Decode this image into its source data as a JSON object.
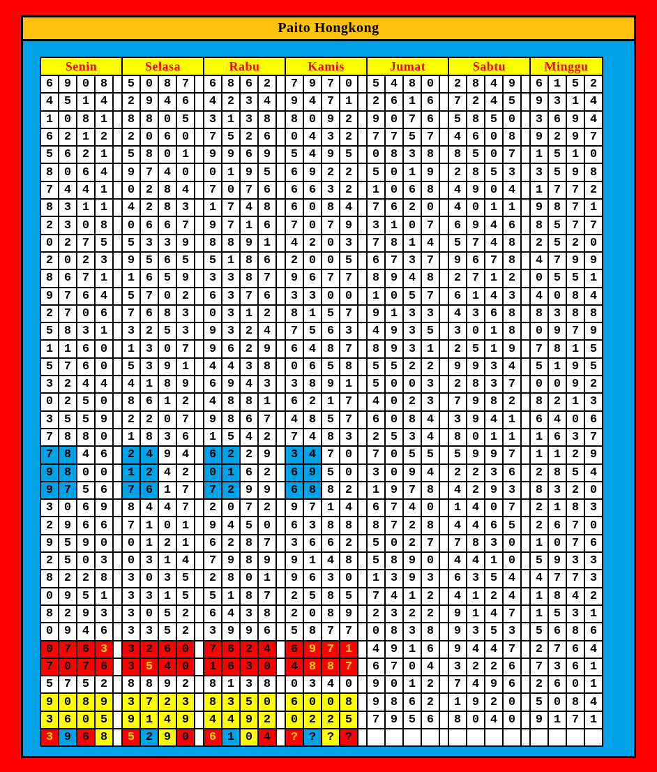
{
  "title": "Paito Hongkong",
  "days": [
    "Senin",
    "Selasa",
    "Rabu",
    "Kamis",
    "Jumat",
    "Sabtu",
    "Minggu"
  ],
  "colors": {
    "page_border": "#FF0000",
    "background": "#00A2E8",
    "title_bar": "#FFC20E",
    "header_bg": "#FFFF00",
    "header_text": "#FF0000",
    "cell_bg": "#FFFFFF",
    "digit_black": "#000000",
    "digit_yellow": "#FFD800",
    "highlight_blue": "#00A2E8",
    "highlight_red": "#FF0000",
    "highlight_yellow": "#FFFF00"
  },
  "style_legend": {
    "bg_codes": {
      "w": "white",
      "b": "blue",
      "r": "red",
      "y": "yellow"
    },
    "fg_codes": {
      "k": "black",
      "y": "yellow"
    }
  },
  "rows": [
    {
      "d": [
        "6908",
        "5087",
        "6862",
        "7970",
        "5480",
        "2849",
        "6152"
      ]
    },
    {
      "d": [
        "4514",
        "2946",
        "4234",
        "9471",
        "2616",
        "7245",
        "9314"
      ]
    },
    {
      "d": [
        "1081",
        "8805",
        "3138",
        "8092",
        "9076",
        "5850",
        "3694"
      ]
    },
    {
      "d": [
        "6212",
        "2060",
        "7526",
        "0432",
        "7757",
        "4608",
        "9297"
      ]
    },
    {
      "d": [
        "5621",
        "5801",
        "9969",
        "5495",
        "0838",
        "8507",
        "1510"
      ]
    },
    {
      "d": [
        "8064",
        "9740",
        "0195",
        "6922",
        "5019",
        "2853",
        "3598"
      ]
    },
    {
      "d": [
        "7441",
        "0284",
        "7076",
        "6632",
        "1068",
        "4904",
        "1772"
      ]
    },
    {
      "d": [
        "8311",
        "4283",
        "1748",
        "6084",
        "7620",
        "4011",
        "9871"
      ]
    },
    {
      "d": [
        "2308",
        "0667",
        "9716",
        "7079",
        "3107",
        "6946",
        "8577"
      ]
    },
    {
      "d": [
        "0275",
        "5339",
        "8891",
        "4203",
        "7814",
        "5748",
        "2520"
      ]
    },
    {
      "d": [
        "2023",
        "9565",
        "5186",
        "2005",
        "6737",
        "9678",
        "4799"
      ]
    },
    {
      "d": [
        "8671",
        "1659",
        "3387",
        "9677",
        "8948",
        "2712",
        "0551"
      ]
    },
    {
      "d": [
        "9764",
        "5702",
        "6376",
        "3300",
        "1057",
        "6143",
        "4084"
      ]
    },
    {
      "d": [
        "2706",
        "7683",
        "0312",
        "8157",
        "9133",
        "4368",
        "8388"
      ]
    },
    {
      "d": [
        "5831",
        "3253",
        "9324",
        "7563",
        "4935",
        "3018",
        "0979"
      ]
    },
    {
      "d": [
        "1160",
        "1307",
        "9629",
        "6487",
        "8931",
        "2519",
        "7815"
      ]
    },
    {
      "d": [
        "5760",
        "5391",
        "4438",
        "0658",
        "5522",
        "9934",
        "5195"
      ]
    },
    {
      "d": [
        "3244",
        "4189",
        "6943",
        "3891",
        "5003",
        "2837",
        "0092"
      ]
    },
    {
      "d": [
        "0250",
        "8612",
        "4881",
        "6217",
        "4023",
        "7982",
        "8213"
      ]
    },
    {
      "d": [
        "3559",
        "2207",
        "9867",
        "4857",
        "6084",
        "3941",
        "6406"
      ]
    },
    {
      "d": [
        "7880",
        "1836",
        "1542",
        "7483",
        "2534",
        "8011",
        "1637"
      ]
    },
    {
      "d": [
        "7846",
        "2494",
        "6229",
        "3470",
        "7055",
        "5997",
        "1129"
      ],
      "bg": [
        "bbww",
        "bbww",
        "bbww",
        "bbww",
        "wwww",
        "wwww",
        "wwww"
      ]
    },
    {
      "d": [
        "9800",
        "1242",
        "0162",
        "6950",
        "3094",
        "2236",
        "2854"
      ],
      "bg": [
        "bbww",
        "bbww",
        "bbww",
        "bbww",
        "wwww",
        "wwww",
        "wwww"
      ]
    },
    {
      "d": [
        "9756",
        "7617",
        "7299",
        "6882",
        "1978",
        "4293",
        "8320"
      ],
      "bg": [
        "bbww",
        "bbww",
        "bbww",
        "bbww",
        "wwww",
        "wwww",
        "wwww"
      ]
    },
    {
      "d": [
        "3069",
        "8447",
        "2072",
        "9714",
        "6740",
        "1407",
        "2183"
      ]
    },
    {
      "d": [
        "2966",
        "7101",
        "9450",
        "6388",
        "8728",
        "4465",
        "2670"
      ]
    },
    {
      "d": [
        "9590",
        "0121",
        "6287",
        "3662",
        "5027",
        "7830",
        "1076"
      ]
    },
    {
      "d": [
        "2503",
        "0314",
        "7989",
        "9148",
        "5890",
        "4410",
        "5933"
      ]
    },
    {
      "d": [
        "8228",
        "3035",
        "2801",
        "9630",
        "1393",
        "6354",
        "4773"
      ]
    },
    {
      "d": [
        "0951",
        "3315",
        "5187",
        "2585",
        "7412",
        "4124",
        "1842"
      ]
    },
    {
      "d": [
        "8293",
        "3052",
        "6438",
        "2089",
        "2322",
        "9147",
        "1531"
      ]
    },
    {
      "d": [
        "0946",
        "3352",
        "3996",
        "5877",
        "0838",
        "9353",
        "5686"
      ]
    },
    {
      "d": [
        "0763",
        "3260",
        "7624",
        "6971",
        "4916",
        "9447",
        "2764"
      ],
      "bg": [
        "rrrr",
        "rrrr",
        "rrrr",
        "rrrr",
        "wwww",
        "wwww",
        "wwww"
      ],
      "fg": [
        "kkky",
        "kkkk",
        "kkkk",
        "kyyy",
        "kkkk",
        "kkkk",
        "kkkk"
      ]
    },
    {
      "d": [
        "7076",
        "3540",
        "1630",
        "4887",
        "6704",
        "3226",
        "7361"
      ],
      "bg": [
        "rrrr",
        "rrrr",
        "rrrr",
        "rrrr",
        "wwww",
        "wwww",
        "wwww"
      ],
      "fg": [
        "kkkk",
        "kykk",
        "kkkk",
        "kyyy",
        "kkkk",
        "kkkk",
        "kkkk"
      ]
    },
    {
      "d": [
        "5752",
        "8892",
        "8138",
        "0340",
        "9012",
        "7496",
        "2601"
      ]
    },
    {
      "d": [
        "9089",
        "3723",
        "8350",
        "6008",
        "9862",
        "1920",
        "5084"
      ],
      "bg": [
        "yyyy",
        "yyyy",
        "yyyy",
        "yyyy",
        "wwww",
        "wwww",
        "wwww"
      ]
    },
    {
      "d": [
        "3605",
        "9149",
        "4492",
        "0225",
        "7956",
        "8040",
        "9171"
      ],
      "bg": [
        "yyyy",
        "yyyy",
        "yyyy",
        "yyyy",
        "wwww",
        "wwww",
        "wwww"
      ]
    },
    {
      "d": [
        "3968",
        "5290",
        "6104",
        "????",
        "",
        "",
        ""
      ],
      "bg": [
        "rbry",
        "rbyr",
        "rbyr",
        "rbyr",
        "wwww",
        "wwww",
        "wwww"
      ],
      "fg": [
        "ykkk",
        "ykkk",
        "ykkk",
        "ykkk",
        "kkkk",
        "kkkk",
        "kkkk"
      ]
    }
  ]
}
